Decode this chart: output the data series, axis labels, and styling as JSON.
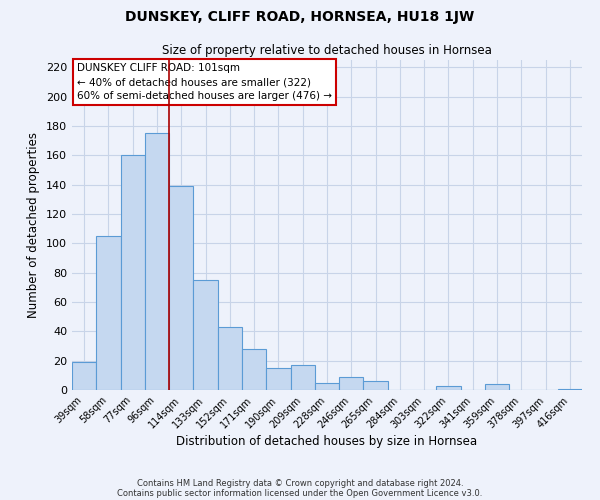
{
  "title": "DUNSKEY, CLIFF ROAD, HORNSEA, HU18 1JW",
  "subtitle": "Size of property relative to detached houses in Hornsea",
  "xlabel": "Distribution of detached houses by size in Hornsea",
  "ylabel": "Number of detached properties",
  "footnote1": "Contains HM Land Registry data © Crown copyright and database right 2024.",
  "footnote2": "Contains public sector information licensed under the Open Government Licence v3.0.",
  "bar_labels": [
    "39sqm",
    "58sqm",
    "77sqm",
    "96sqm",
    "114sqm",
    "133sqm",
    "152sqm",
    "171sqm",
    "190sqm",
    "209sqm",
    "228sqm",
    "246sqm",
    "265sqm",
    "284sqm",
    "303sqm",
    "322sqm",
    "341sqm",
    "359sqm",
    "378sqm",
    "397sqm",
    "416sqm"
  ],
  "bar_values": [
    19,
    105,
    160,
    175,
    139,
    75,
    43,
    28,
    15,
    17,
    5,
    9,
    6,
    0,
    0,
    3,
    0,
    4,
    0,
    0,
    1
  ],
  "bar_color": "#c5d8f0",
  "bar_edge_color": "#5b9bd5",
  "grid_color": "#c8d4e8",
  "background_color": "#eef2fb",
  "ylim": [
    0,
    225
  ],
  "yticks": [
    0,
    20,
    40,
    60,
    80,
    100,
    120,
    140,
    160,
    180,
    200,
    220
  ],
  "annotation_title": "DUNSKEY CLIFF ROAD: 101sqm",
  "annotation_line1": "← 40% of detached houses are smaller (322)",
  "annotation_line2": "60% of semi-detached houses are larger (476) →",
  "annotation_box_color": "#ffffff",
  "annotation_border_color": "#cc0000",
  "redline_x": 3.5
}
